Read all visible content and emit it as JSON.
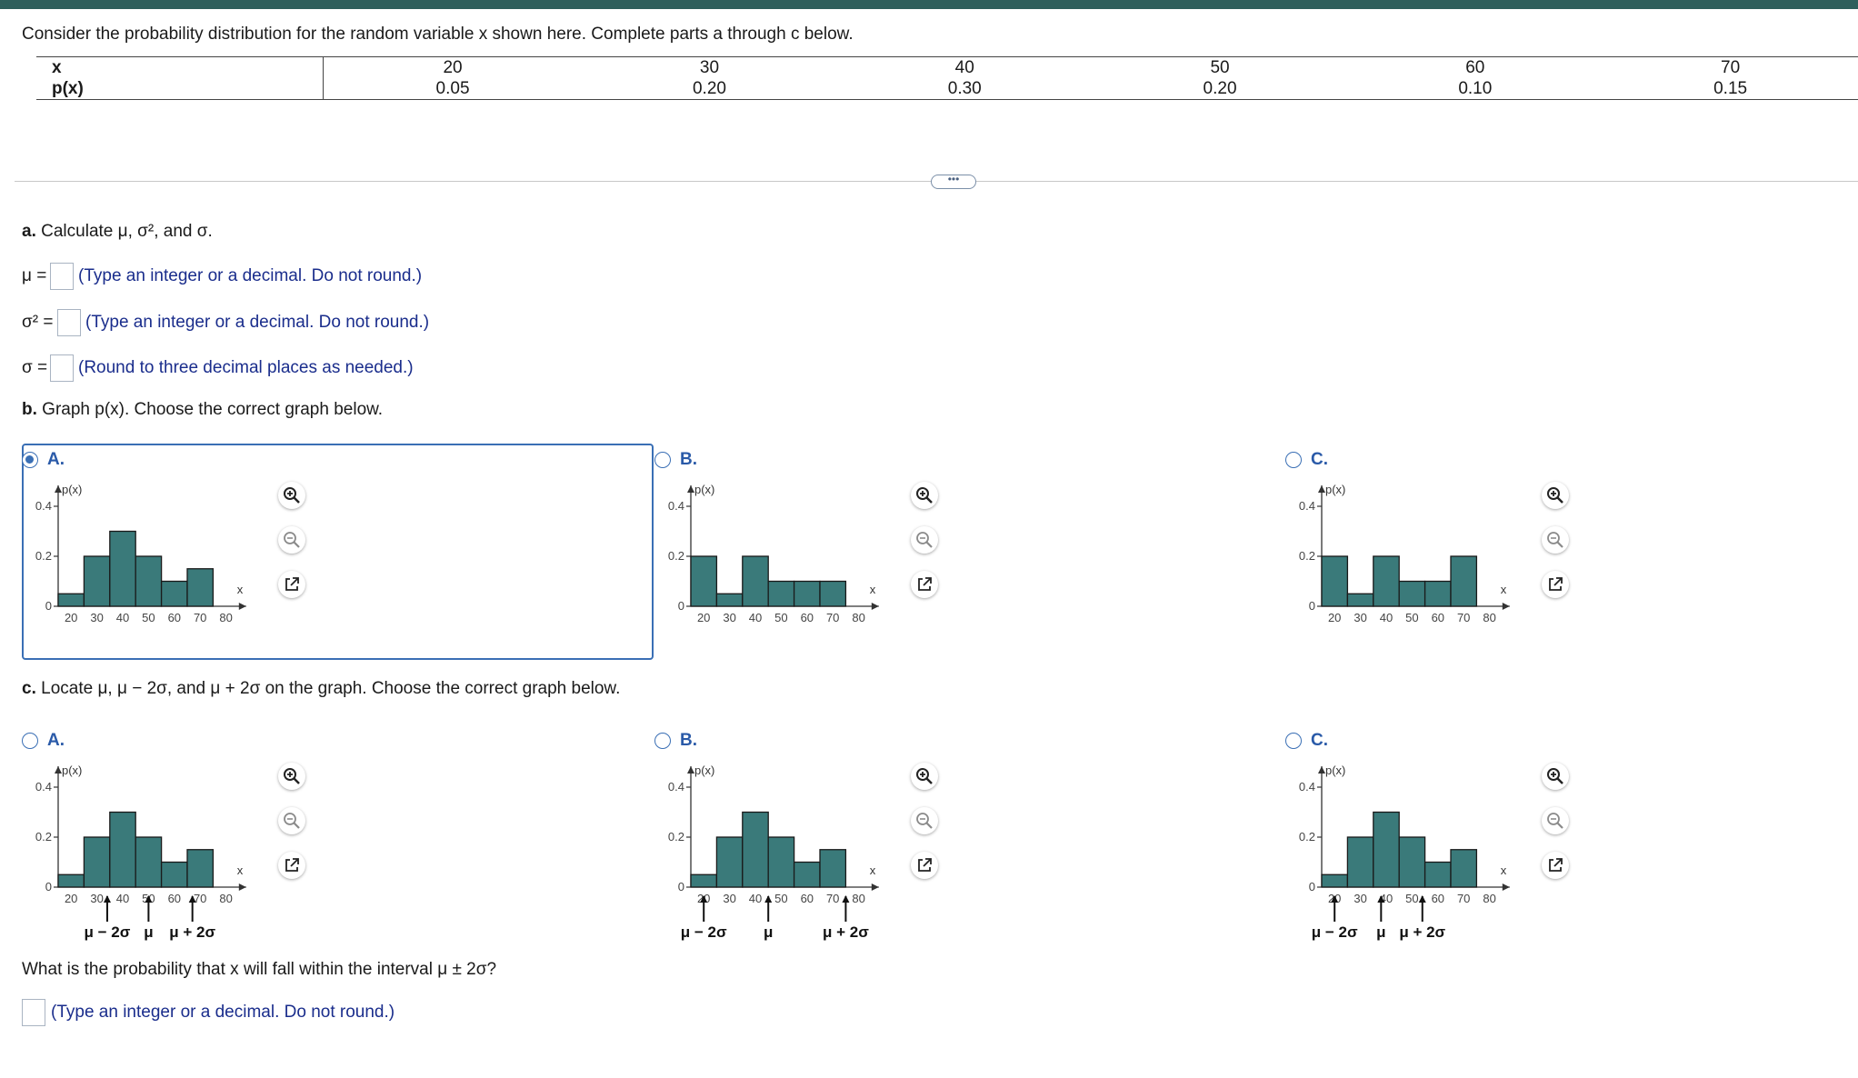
{
  "header": {
    "question": "Consider the probability distribution for the random variable x shown here. Complete parts a through c below."
  },
  "table": {
    "row_labels": [
      "x",
      "p(x)"
    ],
    "x": [
      "20",
      "30",
      "40",
      "50",
      "60",
      "70"
    ],
    "p": [
      "0.05",
      "0.20",
      "0.30",
      "0.20",
      "0.10",
      "0.15"
    ]
  },
  "more_button": "•••",
  "part_a": {
    "prompt_bold": "a.",
    "prompt": "Calculate μ, σ², and σ.",
    "mu_label": "μ =",
    "mu_hint": "(Type an integer or a decimal. Do not round.)",
    "var_label": "σ² =",
    "var_hint": "(Type an integer or a decimal. Do not round.)",
    "sd_label": "σ =",
    "sd_hint": "(Round to three decimal places as needed.)"
  },
  "part_b": {
    "prompt_bold": "b.",
    "prompt": "Graph p(x). Choose the correct graph below.",
    "options": [
      {
        "label": "A.",
        "selected": true,
        "chart_data": {
          "type": "bar",
          "x": [
            20,
            30,
            40,
            50,
            60,
            70
          ],
          "values": [
            0.05,
            0.2,
            0.3,
            0.2,
            0.1,
            0.15
          ]
        }
      },
      {
        "label": "B.",
        "selected": false,
        "chart_data": {
          "type": "bar",
          "x": [
            20,
            30,
            40,
            50,
            60,
            70
          ],
          "values": [
            0.2,
            0.05,
            0.2,
            0.1,
            0.1,
            0.1
          ]
        }
      },
      {
        "label": "C.",
        "selected": false,
        "chart_data": {
          "type": "bar",
          "x": [
            20,
            30,
            40,
            50,
            60,
            70
          ],
          "values": [
            0.2,
            0.05,
            0.2,
            0.1,
            0.1,
            0.2
          ]
        }
      }
    ]
  },
  "part_c": {
    "prompt_bold": "c.",
    "prompt": "Locate μ, μ − 2σ, and μ + 2σ on the graph. Choose the correct graph below.",
    "options": [
      {
        "label": "A.",
        "selected": false,
        "markers": [
          34,
          50,
          67
        ],
        "chart_data": {
          "type": "bar",
          "x": [
            20,
            30,
            40,
            50,
            60,
            70
          ],
          "values": [
            0.05,
            0.2,
            0.3,
            0.2,
            0.1,
            0.15
          ]
        }
      },
      {
        "label": "B.",
        "selected": false,
        "markers": [
          20,
          45,
          75
        ],
        "chart_data": {
          "type": "bar",
          "x": [
            20,
            30,
            40,
            50,
            60,
            70
          ],
          "values": [
            0.05,
            0.2,
            0.3,
            0.2,
            0.1,
            0.15
          ]
        }
      },
      {
        "label": "C.",
        "selected": false,
        "markers": [
          20,
          38,
          54
        ],
        "chart_data": {
          "type": "bar",
          "x": [
            20,
            30,
            40,
            50,
            60,
            70
          ],
          "values": [
            0.05,
            0.2,
            0.3,
            0.2,
            0.1,
            0.15
          ]
        }
      }
    ],
    "marker_labels": [
      "μ − 2σ",
      "μ",
      "μ + 2σ"
    ]
  },
  "chart_text": {
    "y_axis_label": "p(x)",
    "x_axis_label": "x",
    "y_ticks": [
      "0.4",
      "0.2",
      "0"
    ],
    "x_ticks": [
      "20",
      "30",
      "40",
      "50",
      "60",
      "70",
      "80"
    ],
    "ylim": [
      0,
      0.4
    ],
    "xlim": [
      15,
      85
    ]
  },
  "final": {
    "question": "What is the probability that x will fall within the interval μ ± 2σ?",
    "hint": "(Type an integer or a decimal. Do not round.)"
  },
  "colors": {
    "bar_fill": "#3a7a7a",
    "accent": "#3a6fb5",
    "hint_text": "#1a2d8c",
    "top_bar": "#2e5e5b"
  }
}
